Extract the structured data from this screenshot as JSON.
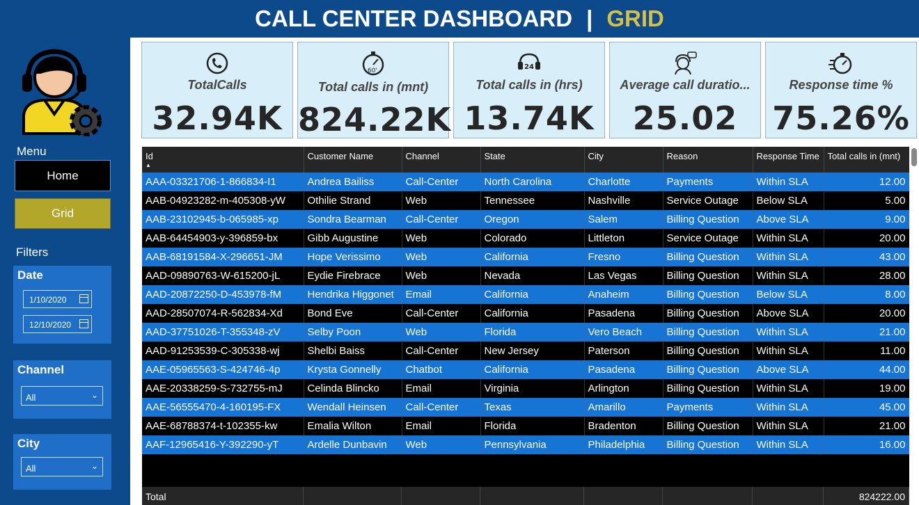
{
  "header": {
    "title": "CALL CENTER DASHBOARD",
    "separator": "|",
    "subtitle": "GRID"
  },
  "colors": {
    "header_bg": "#0d4a8c",
    "accent": "#d6bf48",
    "row_blue": "#1574d4",
    "card_bg": "#d8eef9"
  },
  "sidebar": {
    "menu_label": "Menu",
    "home_label": "Home",
    "grid_label": "Grid",
    "filters_label": "Filters",
    "date": {
      "title": "Date",
      "start": "1/10/2020",
      "end": "12/10/2020"
    },
    "channel": {
      "title": "Channel",
      "selected": "All"
    },
    "city": {
      "title": "City",
      "selected": "All"
    }
  },
  "cards": [
    {
      "icon": "phone-clock-icon",
      "label": "TotalCalls",
      "value": "32.94K"
    },
    {
      "icon": "stopwatch-60-icon",
      "label": "Total calls in (mnt)",
      "value": "824.22K"
    },
    {
      "icon": "phone-24-icon",
      "label": "Total calls in (hrs)",
      "value": "13.74K"
    },
    {
      "icon": "agent-chat-icon",
      "label": "Average call duratio...",
      "value": "25.02"
    },
    {
      "icon": "fast-timer-icon",
      "label": "Response time %",
      "value": "75.26%"
    }
  ],
  "table": {
    "columns": [
      "Id",
      "Customer Name",
      "Channel",
      "State",
      "City",
      "Reason",
      "Response Time",
      "Total calls in (mnt)"
    ],
    "rows": [
      [
        "AAA-03321706-1-866834-I1",
        "Andrea Bailiss",
        "Call-Center",
        "North Carolina",
        "Charlotte",
        "Payments",
        "Within SLA",
        "12.00"
      ],
      [
        "AAB-04923282-m-405308-yW",
        "Othilie Strand",
        "Web",
        "Tennessee",
        "Nashville",
        "Service Outage",
        "Below SLA",
        "5.00"
      ],
      [
        "AAB-23102945-b-065985-xp",
        "Sondra Bearman",
        "Call-Center",
        "Oregon",
        "Salem",
        "Billing Question",
        "Above SLA",
        "9.00"
      ],
      [
        "AAB-64454903-y-396859-bx",
        "Gibb Augustine",
        "Web",
        "Colorado",
        "Littleton",
        "Service Outage",
        "Within SLA",
        "20.00"
      ],
      [
        "AAB-68191584-X-296651-JM",
        "Hope Verissimo",
        "Web",
        "California",
        "Fresno",
        "Billing Question",
        "Within SLA",
        "43.00"
      ],
      [
        "AAD-09890763-W-615200-jL",
        "Eydie Firebrace",
        "Web",
        "Nevada",
        "Las Vegas",
        "Billing Question",
        "Within SLA",
        "28.00"
      ],
      [
        "AAD-20872250-D-453978-fM",
        "Hendrika Higgonet",
        "Email",
        "California",
        "Anaheim",
        "Billing Question",
        "Below SLA",
        "8.00"
      ],
      [
        "AAD-28507074-R-562834-Xd",
        "Bond Eve",
        "Call-Center",
        "California",
        "Pasadena",
        "Billing Question",
        "Above SLA",
        "20.00"
      ],
      [
        "AAD-37751026-T-355348-zV",
        "Selby Poon",
        "Web",
        "Florida",
        "Vero Beach",
        "Billing Question",
        "Within SLA",
        "21.00"
      ],
      [
        "AAD-91253539-C-305338-wj",
        "Shelbi Baiss",
        "Call-Center",
        "New Jersey",
        "Paterson",
        "Billing Question",
        "Within SLA",
        "11.00"
      ],
      [
        "AAE-05965563-S-424746-4p",
        "Krysta Gonnelly",
        "Chatbot",
        "California",
        "Pasadena",
        "Billing Question",
        "Above SLA",
        "44.00"
      ],
      [
        "AAE-20338259-S-732755-mJ",
        "Celinda Blincko",
        "Email",
        "Virginia",
        "Arlington",
        "Billing Question",
        "Within SLA",
        "19.00"
      ],
      [
        "AAE-56555470-4-160195-FX",
        "Wendall Heinsen",
        "Call-Center",
        "Texas",
        "Amarillo",
        "Payments",
        "Within SLA",
        "45.00"
      ],
      [
        "AAE-68788374-t-102355-kw",
        "Emalia Wilton",
        "Email",
        "Florida",
        "Bradenton",
        "Billing Question",
        "Within SLA",
        "21.00"
      ],
      [
        "AAF-12965416-Y-392290-yT",
        "Ardelle Dunbavin",
        "Web",
        "Pennsylvania",
        "Philadelphia",
        "Billing Question",
        "Within SLA",
        "16.00"
      ]
    ],
    "total_label": "Total",
    "total_value": "824222.00"
  }
}
